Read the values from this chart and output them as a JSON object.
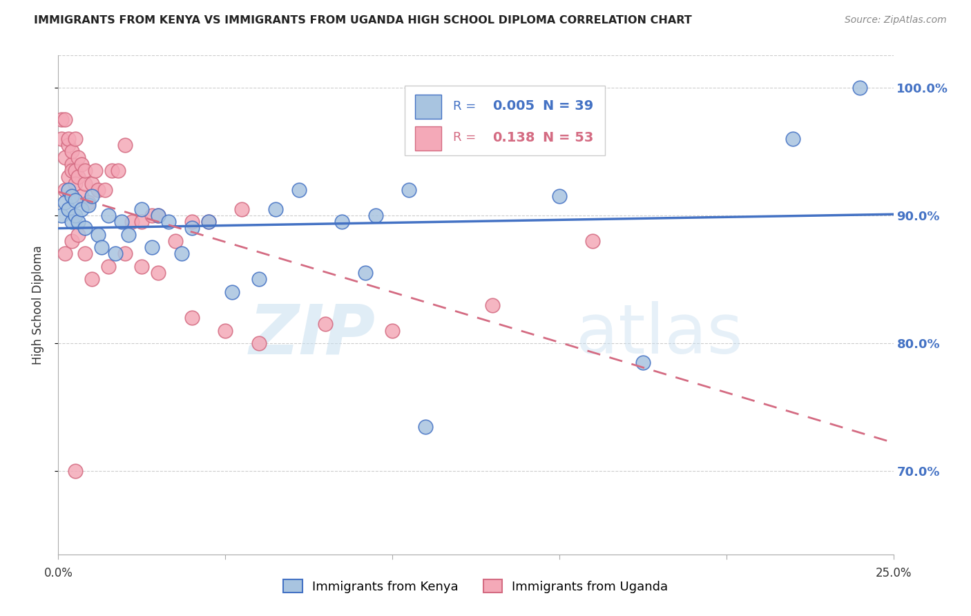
{
  "title": "IMMIGRANTS FROM KENYA VS IMMIGRANTS FROM UGANDA HIGH SCHOOL DIPLOMA CORRELATION CHART",
  "source": "Source: ZipAtlas.com",
  "ylabel": "High School Diploma",
  "legend_kenya": "Immigrants from Kenya",
  "legend_uganda": "Immigrants from Uganda",
  "r_kenya": "0.005",
  "n_kenya": "39",
  "r_uganda": "0.138",
  "n_uganda": "53",
  "xlim": [
    0.0,
    0.25
  ],
  "ylim": [
    0.635,
    1.025
  ],
  "yticks": [
    0.7,
    0.8,
    0.9,
    1.0
  ],
  "ytick_labels": [
    "70.0%",
    "80.0%",
    "90.0%",
    "100.0%"
  ],
  "color_kenya": "#a8c4e0",
  "color_uganda": "#f4a9b8",
  "line_color_kenya": "#4472c4",
  "line_color_uganda": "#d46b82",
  "watermark_zip": "ZIP",
  "watermark_atlas": "atlas",
  "kenya_x": [
    0.001,
    0.002,
    0.003,
    0.003,
    0.004,
    0.004,
    0.005,
    0.005,
    0.006,
    0.007,
    0.008,
    0.009,
    0.01,
    0.012,
    0.013,
    0.015,
    0.017,
    0.019,
    0.021,
    0.025,
    0.028,
    0.03,
    0.033,
    0.037,
    0.04,
    0.045,
    0.052,
    0.06,
    0.065,
    0.072,
    0.085,
    0.092,
    0.095,
    0.105,
    0.11,
    0.15,
    0.175,
    0.22,
    0.24
  ],
  "kenya_y": [
    0.9,
    0.91,
    0.905,
    0.92,
    0.895,
    0.915,
    0.9,
    0.912,
    0.895,
    0.905,
    0.89,
    0.908,
    0.915,
    0.885,
    0.875,
    0.9,
    0.87,
    0.895,
    0.885,
    0.905,
    0.875,
    0.9,
    0.895,
    0.87,
    0.89,
    0.895,
    0.84,
    0.85,
    0.905,
    0.92,
    0.895,
    0.855,
    0.9,
    0.92,
    0.735,
    0.915,
    0.785,
    0.96,
    1.0
  ],
  "uganda_x": [
    0.001,
    0.001,
    0.002,
    0.002,
    0.002,
    0.003,
    0.003,
    0.003,
    0.004,
    0.004,
    0.004,
    0.005,
    0.005,
    0.005,
    0.006,
    0.006,
    0.007,
    0.007,
    0.008,
    0.008,
    0.009,
    0.01,
    0.011,
    0.012,
    0.014,
    0.016,
    0.018,
    0.02,
    0.022,
    0.025,
    0.028,
    0.03,
    0.035,
    0.04,
    0.045,
    0.055,
    0.002,
    0.004,
    0.006,
    0.008,
    0.01,
    0.015,
    0.02,
    0.025,
    0.03,
    0.04,
    0.05,
    0.06,
    0.08,
    0.1,
    0.13,
    0.16,
    0.005
  ],
  "uganda_y": [
    0.96,
    0.975,
    0.92,
    0.945,
    0.975,
    0.955,
    0.93,
    0.96,
    0.94,
    0.95,
    0.935,
    0.935,
    0.96,
    0.925,
    0.945,
    0.93,
    0.915,
    0.94,
    0.925,
    0.935,
    0.91,
    0.925,
    0.935,
    0.92,
    0.92,
    0.935,
    0.935,
    0.955,
    0.895,
    0.895,
    0.9,
    0.9,
    0.88,
    0.895,
    0.895,
    0.905,
    0.87,
    0.88,
    0.885,
    0.87,
    0.85,
    0.86,
    0.87,
    0.86,
    0.855,
    0.82,
    0.81,
    0.8,
    0.815,
    0.81,
    0.83,
    0.88,
    0.7
  ]
}
